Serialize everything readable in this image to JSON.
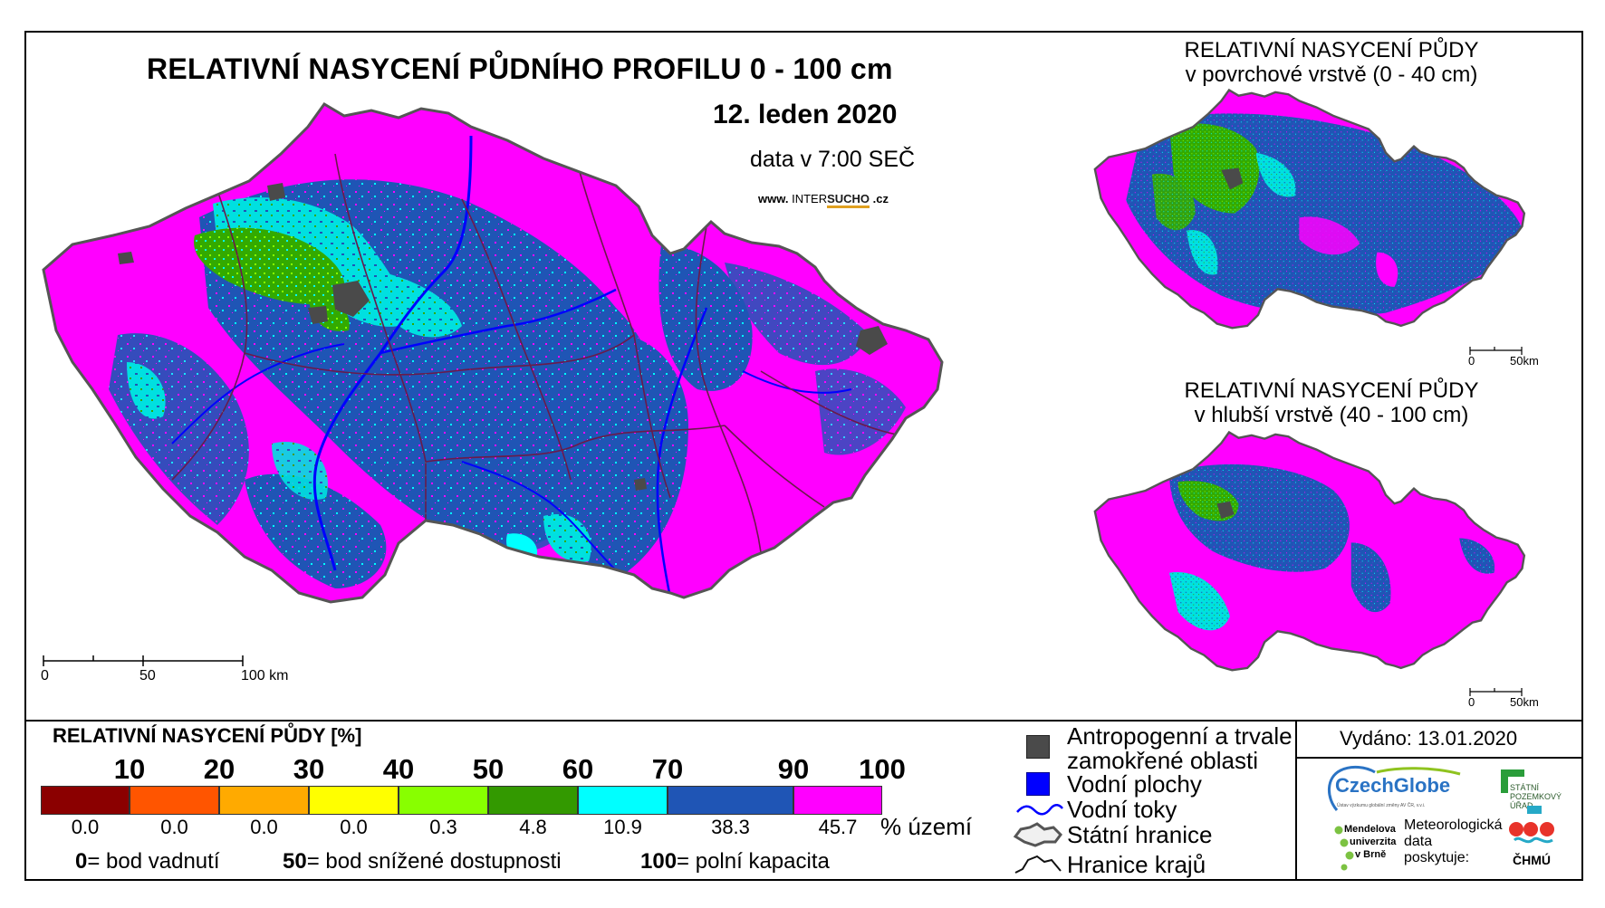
{
  "title": "RELATIVNÍ NASYCENÍ PŮDNÍHO PROFILU 0 - 100 cm",
  "date": "12. leden 2020",
  "data_time": "data v 7:00 SEČ",
  "website": {
    "prefix": "www.",
    "inter": "INTER",
    "sucho": "SUCHO",
    "suffix": ".cz"
  },
  "main_scale": {
    "zero": "0",
    "fifty": "50",
    "hundred": "100 km"
  },
  "insets": [
    {
      "title_line1": "RELATIVNÍ NASYCENÍ PŮDY",
      "title_line2": "v povrchové vrstvě (0 - 40 cm)",
      "scale_zero": "0",
      "scale_end": "50km"
    },
    {
      "title_line1": "RELATIVNÍ NASYCENÍ PŮDY",
      "title_line2": "v hlubší vrstvě (40 - 100 cm)",
      "scale_zero": "0",
      "scale_end": "50km"
    }
  ],
  "legend": {
    "title": "RELATIVNÍ NASYCENÍ PŮDY [%]",
    "ticks": [
      "10",
      "20",
      "30",
      "40",
      "50",
      "60",
      "70",
      "90",
      "100"
    ],
    "classes": [
      {
        "color": "#8b0000",
        "percent": "0.0"
      },
      {
        "color": "#ff5500",
        "percent": "0.0"
      },
      {
        "color": "#ffaa00",
        "percent": "0.0"
      },
      {
        "color": "#ffff00",
        "percent": "0.0"
      },
      {
        "color": "#88ff00",
        "percent": "0.3"
      },
      {
        "color": "#339900",
        "percent": "4.8"
      },
      {
        "color": "#00ffff",
        "percent": "10.9"
      },
      {
        "color": "#1f55b5",
        "percent": "38.3"
      },
      {
        "color": "#ff00ff",
        "percent": "45.7"
      }
    ],
    "percent_unit": "% území",
    "def_0_value": "0",
    "def_0_text": "= bod vadnutí",
    "def_50_value": "50",
    "def_50_text": "= bod snížené dostupnosti",
    "def_100_value": "100",
    "def_100_text": "= polní kapacita"
  },
  "symbols": {
    "wetland_line1": "Antropogenní a trvale",
    "wetland_line2": "zamokřené oblasti",
    "water_bodies": "Vodní plochy",
    "rivers": "Vodní toky",
    "state_border": "Státní hranice",
    "region_border": "Hranice krajů"
  },
  "issued": "Vydáno: 13.01.2020",
  "logos": {
    "czechglobe": "CzechGlobe",
    "czechglobe_sub": "Ústav výzkumu globální změny AV ČR, v.v.i.",
    "spu_line1": "STÁTNÍ",
    "spu_line2": "POZEMKOVÝ",
    "spu_line3": "ÚŘAD",
    "mendel_line1": "Mendelova",
    "mendel_line2": "univerzita",
    "mendel_line3": "v Brně",
    "meteo_line1": "Meteorologická",
    "meteo_line2": "data",
    "meteo_line3": "poskytuje:",
    "chmu": "ČHMÚ"
  },
  "colors": {
    "magenta": "#ff00ff",
    "blue": "#1f55b5",
    "cyan": "#00ffff",
    "green": "#339900",
    "lightgreen": "#88ff00",
    "wetland": "#4a4a4a",
    "water": "#0000ff"
  }
}
